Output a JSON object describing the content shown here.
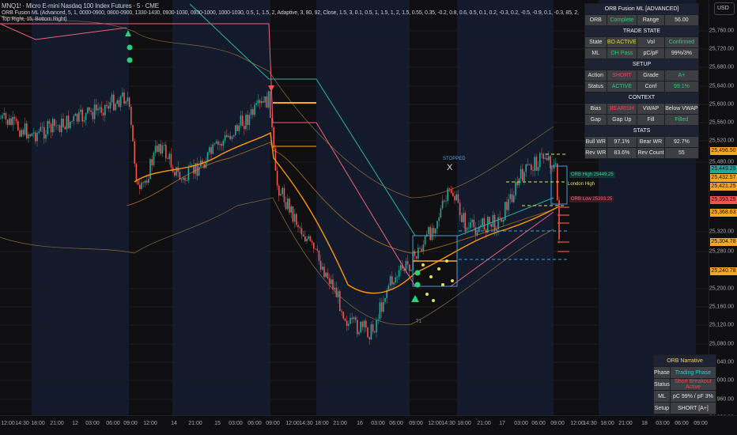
{
  "header": {
    "symbol_line": "MNQ1! · Micro E-mini Nasdaq 100 Index Futures · 5 · CME",
    "indicator_line": "ORB Fusion ML (Advanced, 5, 1, 0000-0900, 0800-0900, 1330-1430, 0930-1030, 0930-1000, 1000-1030, 0.5, 1, 1.5, 2, Adaptive, 3, 80, 92, Close, 1.5, 3, 0.1, 0.5, 1, 1.5, 1, 2, 1.5, 0.55, 0.35, -0.2, 0.8, 0.6, 0.5, 0.1, 0.2, -0.3, 0.2, -0.5, -0.9, 0.1, -0.3, 85, 2, Top Right, 15, Bottom Right)"
  },
  "currency": "USD",
  "colors": {
    "bg": "#0f0f12",
    "session_shade": "#131a2b",
    "up": "#26a69a",
    "down": "#ef5350",
    "orb": "#ffa726",
    "teal_line": "#2bb3a3",
    "pink_line": "#f06078",
    "vwap": "#ff9800"
  },
  "price_axis": {
    "labels": [
      "25,760.00",
      "25,720.00",
      "25,680.00",
      "25,640.00",
      "25,600.00",
      "25,560.00",
      "25,520.00",
      "25,480.00",
      "25,320.00",
      "25,280.00",
      "25,200.00",
      "25,160.00",
      "25,120.00",
      "25,080.00",
      "25,040.00",
      "25,000.00",
      "24,960.00",
      "24,920.00"
    ],
    "tags": [
      {
        "text": "25,496.50",
        "color": "#f5a623"
      },
      {
        "text": "25,449.25",
        "color": "#26a69a"
      },
      {
        "text": "25,432.57",
        "color": "#f5a623"
      },
      {
        "text": "25,421.25",
        "color": "#f5a623"
      },
      {
        "text": "25,393.25",
        "color": "#ef5350"
      },
      {
        "text": "25,368.63",
        "color": "#f5a623"
      },
      {
        "text": "25,304.78",
        "color": "#f5a623"
      },
      {
        "text": "25,240.78",
        "color": "#f5a623"
      }
    ]
  },
  "time_axis": [
    "12:00",
    "14:30",
    "18:00",
    "21:00",
    "12",
    "03:00",
    "06:00",
    "09:00",
    "12:00",
    "14",
    "21:00",
    "15",
    "03:00",
    "06:00",
    "09:00",
    "12:00",
    "14:30",
    "18:00",
    "21:00",
    "16",
    "03:00",
    "06:00",
    "09:00",
    "12:00",
    "14:30",
    "18:00",
    "21:00",
    "17",
    "03:00",
    "06:00",
    "09:00",
    "12:00",
    "14:30",
    "18:00",
    "21:00",
    "18",
    "03:00",
    "06:00",
    "09:00"
  ],
  "chart_labels": {
    "stopped": "STOPPED",
    "stopped_mark": "X",
    "orb_high": "ORB High 25449.25",
    "orb_low": "ORB Low 25393.25",
    "london_high": "London High",
    "t1": "T1"
  },
  "panel": {
    "title": "ORB Fusion ML [ADVANCED]",
    "orb": {
      "label": "ORB",
      "value": "Complete",
      "range_label": "Range",
      "range_value": "56.00"
    },
    "trade_state": {
      "title": "TRADE STATE",
      "state_label": "State",
      "state": "BO ACTIVE",
      "vol_label": "Vol",
      "vol": "Confirmed",
      "ml_label": "ML",
      "ml": "OH Pass",
      "pcpf_label": "pC/pF",
      "pcpf": "99%/3%"
    },
    "setup": {
      "title": "SETUP",
      "action_label": "Action",
      "action": "SHORT",
      "grade_label": "Grade",
      "grade": "A+",
      "status_label": "Status",
      "status": "ACTIVE",
      "conf_label": "Conf",
      "conf": "99.1%"
    },
    "context": {
      "title": "CONTEXT",
      "bias_label": "Bias",
      "bias": "BEARISH",
      "vwap_label": "VWAP",
      "vwap": "Below VWAP",
      "gap_label": "Gap",
      "gap": "Gap Up",
      "fill_label": "Fill",
      "fill": "Filled"
    },
    "stats": {
      "title": "STATS",
      "bull_label": "Bull WR",
      "bull": "97.1%",
      "bear_label": "Bear WR",
      "bear": "92.7%",
      "rev_label": "Rev WR",
      "rev": "83.6%",
      "count_label": "Rev Count",
      "count": "55"
    }
  },
  "narrative": {
    "title": "ORB Narrative",
    "phase_label": "Phase",
    "phase": "Trading Phase",
    "status_label": "Status",
    "status": "Short Breakout Active",
    "ml_label": "ML",
    "ml": "pC 99% / pF 3%",
    "setup_label": "Setup",
    "setup": "SHORT [A+]"
  }
}
